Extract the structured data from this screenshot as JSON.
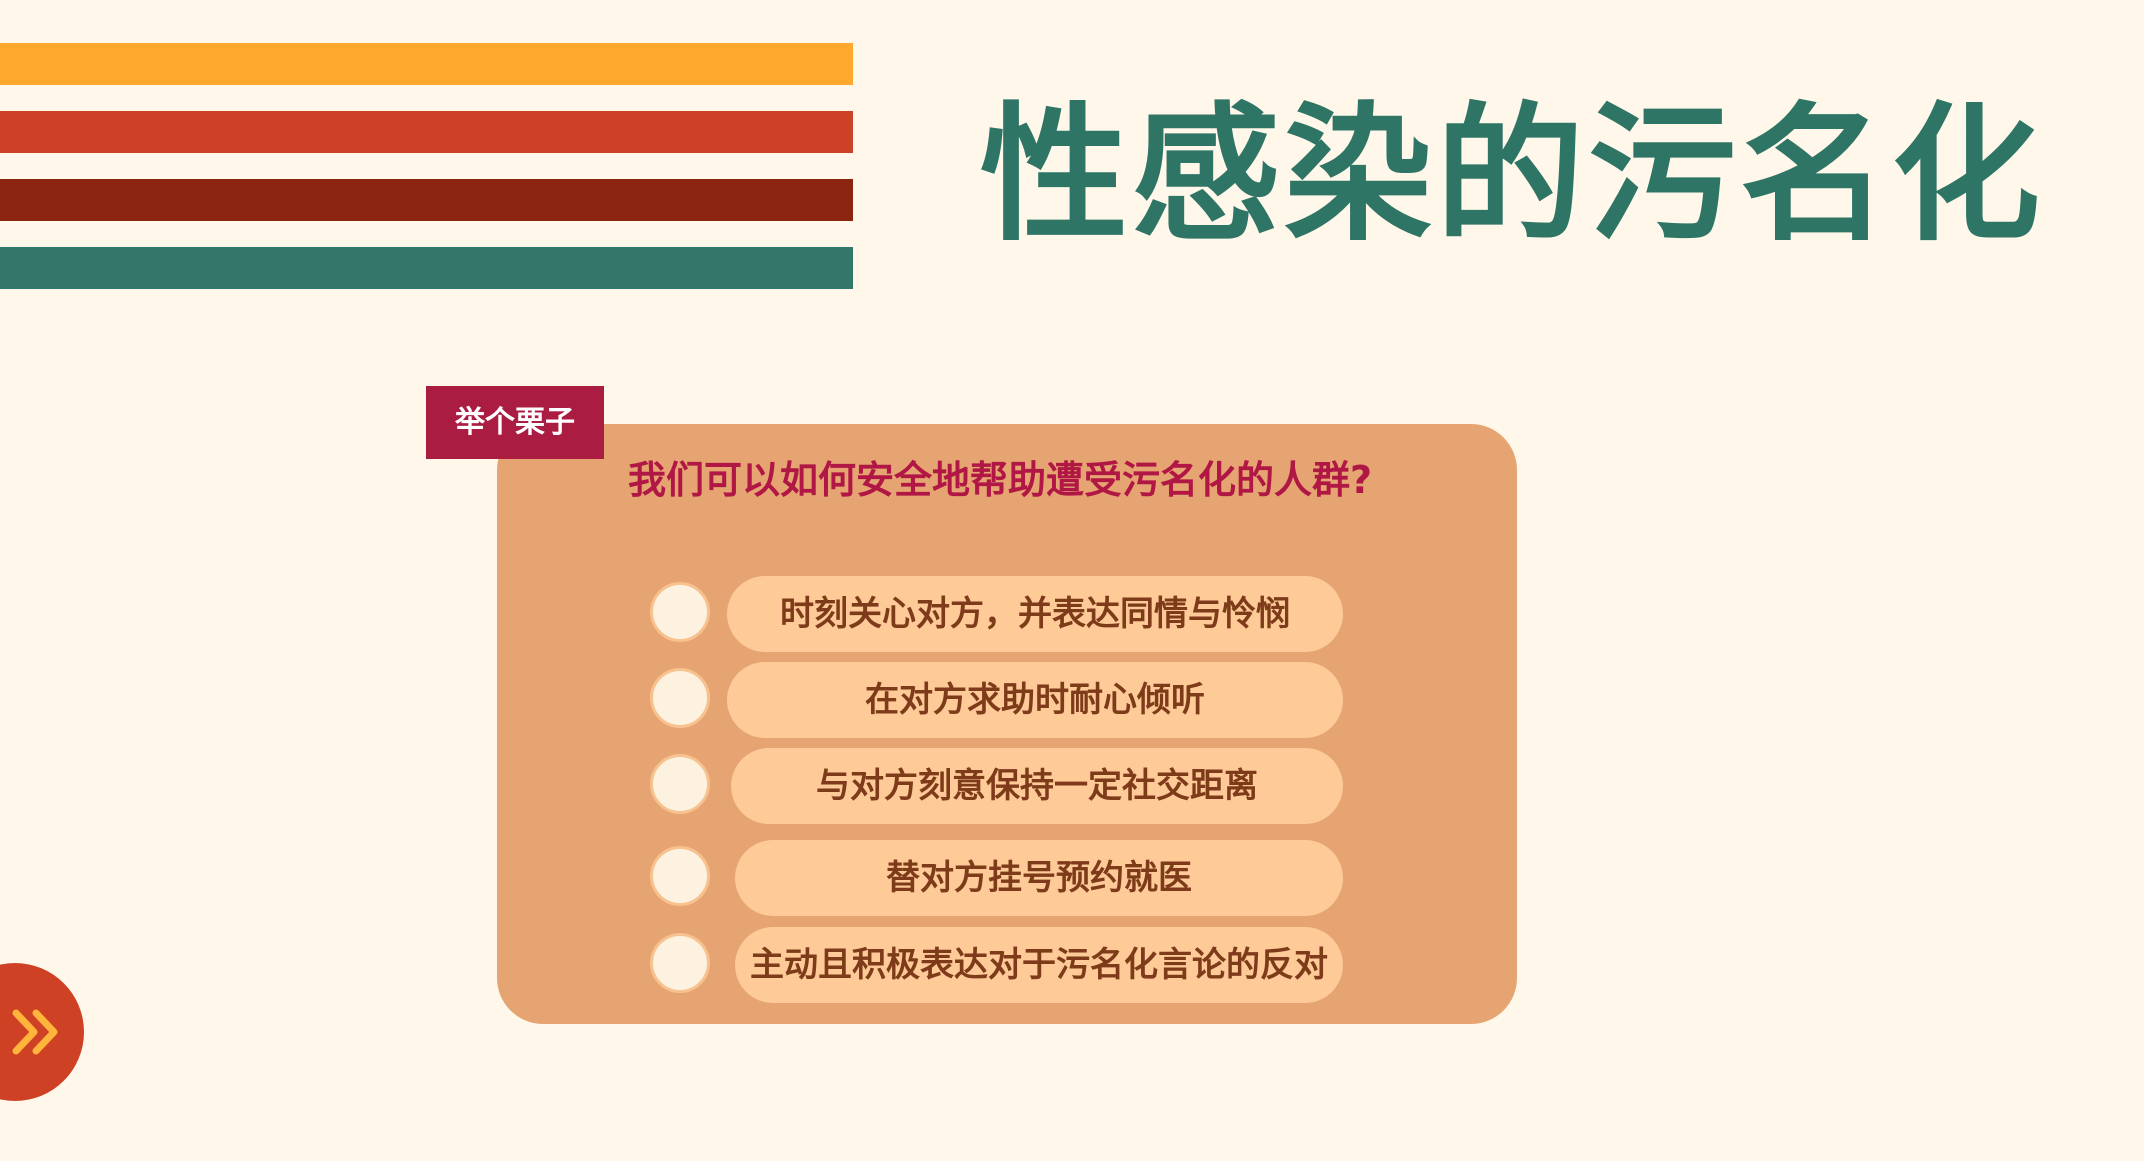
{
  "slide": {
    "title": "性感染的污名化",
    "colors": {
      "background": "#fff8ea",
      "stripes": [
        "#ffa82e",
        "#cc4128",
        "#8b2512",
        "#33776a"
      ],
      "title": "#2f7566",
      "card": "#e5a472",
      "tag": "#ab1c43",
      "question": "#b01744",
      "option_pill": "#fdca98",
      "option_text": "#7e3b1a",
      "next_button": "#cf4125",
      "next_icon": "#ffb43c"
    }
  },
  "quiz": {
    "tag_label": "举个栗子",
    "question": "我们可以如何安全地帮助遭受污名化的人群?",
    "options": [
      {
        "label": "时刻关心对方，并表达同情与怜悯",
        "selected": false
      },
      {
        "label": "在对方求助时耐心倾听",
        "selected": false
      },
      {
        "label": "与对方刻意保持一定社交距离",
        "selected": false
      },
      {
        "label": "替对方挂号预约就医",
        "selected": false
      },
      {
        "label": "主动且积极表达对于污名化言论的反对",
        "selected": false
      }
    ]
  },
  "navigation": {
    "next_icon": "double-chevron-right-icon"
  }
}
